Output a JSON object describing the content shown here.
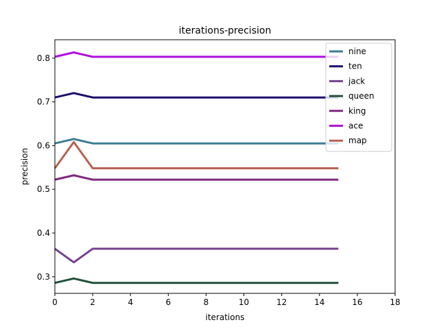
{
  "chart_data": {
    "type": "line",
    "title": "iterations-precision",
    "xlabel": "iterations",
    "ylabel": "precision",
    "xlim": [
      0,
      18
    ],
    "ylim": [
      0.262,
      0.842
    ],
    "xticks": [
      0,
      2,
      4,
      6,
      8,
      10,
      12,
      14,
      16,
      18
    ],
    "yticks": [
      0.3,
      0.4,
      0.5,
      0.6,
      0.7,
      0.8
    ],
    "legend_position": "top-right",
    "grid": false,
    "x": [
      0,
      1,
      2,
      3,
      4,
      5,
      6,
      7,
      8,
      9,
      10,
      11,
      12,
      13,
      14,
      15
    ],
    "series": [
      {
        "name": "nine",
        "color": "#3a7d93",
        "values": [
          0.605,
          0.615,
          0.605,
          0.605,
          0.605,
          0.605,
          0.605,
          0.605,
          0.605,
          0.605,
          0.605,
          0.605,
          0.605,
          0.605,
          0.605,
          0.605
        ]
      },
      {
        "name": "ten",
        "color": "#1c0a6b",
        "values": [
          0.71,
          0.72,
          0.71,
          0.71,
          0.71,
          0.71,
          0.71,
          0.71,
          0.71,
          0.71,
          0.71,
          0.71,
          0.71,
          0.71,
          0.71,
          0.71
        ]
      },
      {
        "name": "jack",
        "color": "#73408e",
        "values": [
          0.364,
          0.333,
          0.364,
          0.364,
          0.364,
          0.364,
          0.364,
          0.364,
          0.364,
          0.364,
          0.364,
          0.364,
          0.364,
          0.364,
          0.364,
          0.364
        ]
      },
      {
        "name": "queen",
        "color": "#1f4f3a",
        "values": [
          0.286,
          0.296,
          0.286,
          0.286,
          0.286,
          0.286,
          0.286,
          0.286,
          0.286,
          0.286,
          0.286,
          0.286,
          0.286,
          0.286,
          0.286,
          0.286
        ]
      },
      {
        "name": "king",
        "color": "#80267f",
        "values": [
          0.522,
          0.532,
          0.522,
          0.522,
          0.522,
          0.522,
          0.522,
          0.522,
          0.522,
          0.522,
          0.522,
          0.522,
          0.522,
          0.522,
          0.522,
          0.522
        ]
      },
      {
        "name": "ace",
        "color": "#b00fe3",
        "values": [
          0.803,
          0.813,
          0.803,
          0.803,
          0.803,
          0.803,
          0.803,
          0.803,
          0.803,
          0.803,
          0.803,
          0.803,
          0.803,
          0.803,
          0.803,
          0.803
        ]
      },
      {
        "name": "map",
        "color": "#b56250",
        "values": [
          0.548,
          0.608,
          0.548,
          0.548,
          0.548,
          0.548,
          0.548,
          0.548,
          0.548,
          0.548,
          0.548,
          0.548,
          0.548,
          0.548,
          0.548,
          0.548
        ]
      }
    ]
  }
}
